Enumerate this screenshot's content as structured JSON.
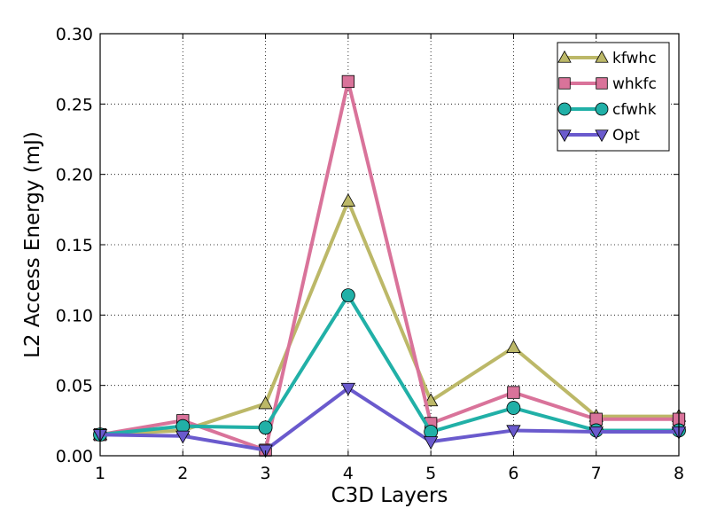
{
  "chart_data": {
    "type": "line",
    "title": "",
    "xlabel": "C3D Layers",
    "ylabel": "L2 Access Energy (mJ)",
    "x": [
      1,
      2,
      3,
      4,
      5,
      6,
      7,
      8
    ],
    "xlim": [
      1,
      8
    ],
    "ylim": [
      0,
      0.3
    ],
    "xticks": [
      "1",
      "2",
      "3",
      "4",
      "5",
      "6",
      "7",
      "8"
    ],
    "yticks": [
      "0.00",
      "0.05",
      "0.10",
      "0.15",
      "0.20",
      "0.25",
      "0.30"
    ],
    "grid": true,
    "legend_position": "top-right",
    "series": [
      {
        "name": "kfwhc",
        "color": "#bcb868",
        "marker": "triangle-up",
        "values": [
          0.015,
          0.018,
          0.037,
          0.181,
          0.039,
          0.077,
          0.028,
          0.028
        ]
      },
      {
        "name": "whkfc",
        "color": "#d9739a",
        "marker": "square",
        "values": [
          0.015,
          0.025,
          0.004,
          0.266,
          0.023,
          0.045,
          0.026,
          0.026
        ]
      },
      {
        "name": "cfwhk",
        "color": "#21b0a7",
        "marker": "circle",
        "values": [
          0.015,
          0.021,
          0.02,
          0.114,
          0.017,
          0.034,
          0.018,
          0.018
        ]
      },
      {
        "name": "Opt",
        "color": "#6a5acd",
        "marker": "triangle-down",
        "values": [
          0.015,
          0.014,
          0.004,
          0.048,
          0.01,
          0.018,
          0.017,
          0.017
        ]
      }
    ]
  }
}
